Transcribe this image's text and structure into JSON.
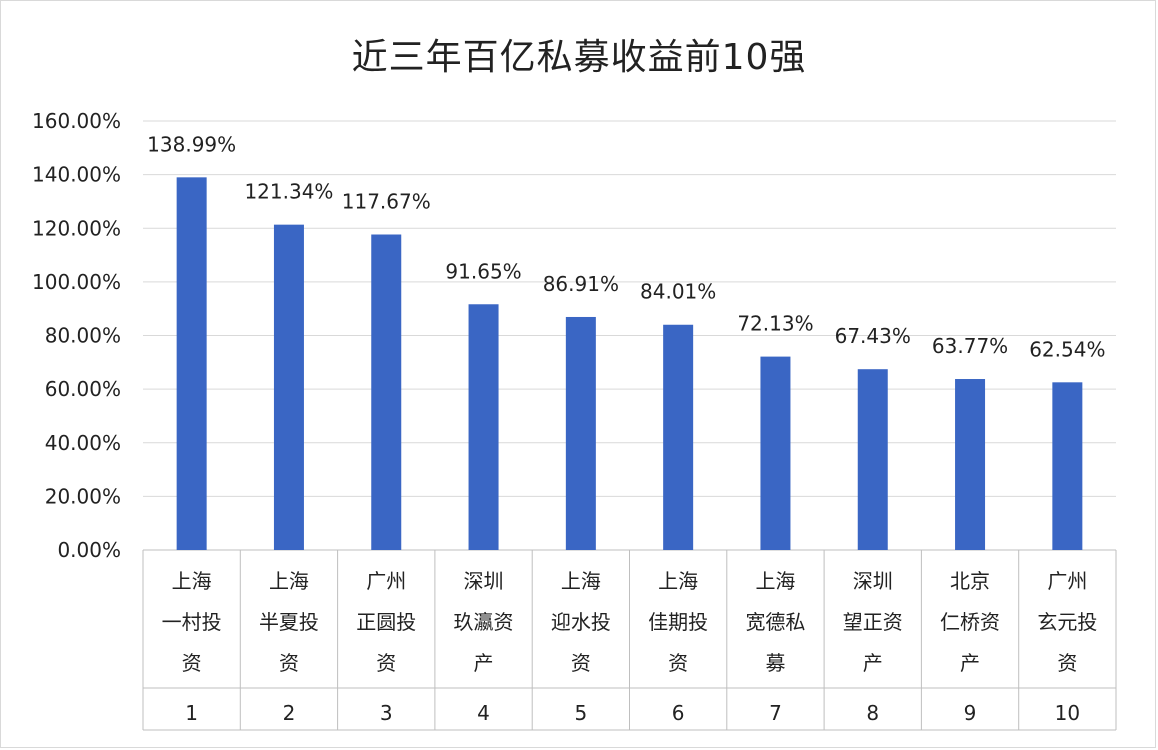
{
  "chart_data": {
    "type": "bar",
    "title": "近三年百亿私募收益前10强",
    "xlabel": "",
    "ylabel": "",
    "ylim": [
      0,
      160
    ],
    "y_ticks": [
      "0.00%",
      "20.00%",
      "40.00%",
      "60.00%",
      "80.00%",
      "100.00%",
      "120.00%",
      "140.00%",
      "160.00%"
    ],
    "grid": true,
    "bar_color": "#3A66C4",
    "categories": [
      {
        "rank": "1",
        "lines": [
          "上海",
          "一村投",
          "资"
        ]
      },
      {
        "rank": "2",
        "lines": [
          "上海",
          "半夏投",
          "资"
        ]
      },
      {
        "rank": "3",
        "lines": [
          "广州",
          "正圆投",
          "资"
        ]
      },
      {
        "rank": "4",
        "lines": [
          "深圳",
          "玖瀛资",
          "产"
        ]
      },
      {
        "rank": "5",
        "lines": [
          "上海",
          "迎水投",
          "资"
        ]
      },
      {
        "rank": "6",
        "lines": [
          "上海",
          "佳期投",
          "资"
        ]
      },
      {
        "rank": "7",
        "lines": [
          "上海",
          "宽德私",
          "募"
        ]
      },
      {
        "rank": "8",
        "lines": [
          "深圳",
          "望正资",
          "产"
        ]
      },
      {
        "rank": "9",
        "lines": [
          "北京",
          "仁桥资",
          "产"
        ]
      },
      {
        "rank": "10",
        "lines": [
          "广州",
          "玄元投",
          "资"
        ]
      }
    ],
    "values": [
      138.99,
      121.34,
      117.67,
      91.65,
      86.91,
      84.01,
      72.13,
      67.43,
      63.77,
      62.54
    ],
    "value_labels": [
      "138.99%",
      "121.34%",
      "117.67%",
      "91.65%",
      "86.91%",
      "84.01%",
      "72.13%",
      "67.43%",
      "63.77%",
      "62.54%"
    ]
  }
}
